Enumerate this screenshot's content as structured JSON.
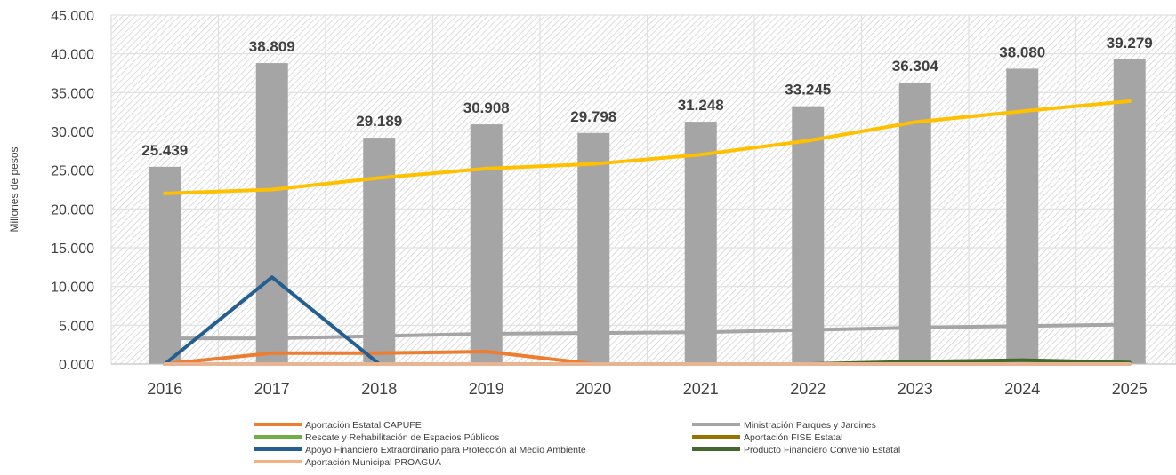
{
  "chart_data": {
    "type": "bar",
    "ylabel": "Millones de pesos",
    "ylim": [
      0,
      45
    ],
    "y_ticks": [
      "0.000",
      "5.000",
      "10.000",
      "15.000",
      "20.000",
      "25.000",
      "30.000",
      "35.000",
      "40.000",
      "45.000"
    ],
    "categories": [
      "2016",
      "2017",
      "2018",
      "2019",
      "2020",
      "2021",
      "2022",
      "2023",
      "2024",
      "2025"
    ],
    "bar_values": [
      25.439,
      38.809,
      29.189,
      30.908,
      29.798,
      31.248,
      33.245,
      36.304,
      38.08,
      39.279
    ],
    "bar_labels": [
      "25.439",
      "38.809",
      "29.189",
      "30.908",
      "29.798",
      "31.248",
      "33.245",
      "36.304",
      "38.080",
      "39.279"
    ],
    "bar_color": "#a5a5a5",
    "grid": true,
    "legend_position": "bottom",
    "series": [
      {
        "name": "",
        "color": "#ffc000",
        "values": [
          22.0,
          22.5,
          24.0,
          25.2,
          25.8,
          27.0,
          28.8,
          31.2,
          32.6,
          33.9
        ]
      },
      {
        "name": "Aportación Estatal CAPUFE",
        "color": "#ed7d31",
        "values": [
          0,
          1.4,
          1.4,
          1.6,
          0,
          0,
          0,
          0,
          0,
          0
        ]
      },
      {
        "name": "Ministración Parques y Jardines",
        "color": "#a5a5a5",
        "values": [
          3.3,
          3.3,
          3.6,
          3.9,
          4.0,
          4.1,
          4.4,
          4.7,
          4.9,
          5.1
        ]
      },
      {
        "name": "Rescate y Rehabilitación de Espacios Públicos",
        "color": "#70ad47",
        "values": [
          0,
          0,
          0,
          0,
          0,
          0,
          0,
          0,
          0,
          0
        ]
      },
      {
        "name": "Aportación FISE Estatal",
        "color": "#997300",
        "values": [
          0,
          0,
          0,
          0,
          0,
          0,
          0,
          0,
          0,
          0
        ]
      },
      {
        "name": "Apoyo Financiero Extraordinario para Protección al Medio Ambiente",
        "color": "#255e91",
        "values": [
          0,
          11.2,
          0,
          null,
          null,
          null,
          null,
          null,
          null,
          null
        ]
      },
      {
        "name": "Producto Financiero Convenio Estatal",
        "color": "#43682b",
        "values": [
          0,
          0,
          0,
          0,
          0,
          0,
          0,
          0.3,
          0.5,
          0.2
        ]
      },
      {
        "name": "Aportación Municipal PROAGUA",
        "color": "#f4b183",
        "values": [
          0,
          0,
          0,
          0,
          0,
          0,
          0,
          0,
          0,
          0
        ]
      }
    ]
  }
}
